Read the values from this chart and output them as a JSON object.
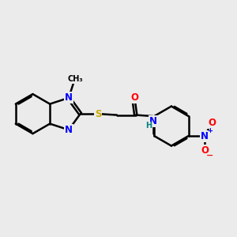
{
  "bg_color": "#ebebeb",
  "bond_color": "#000000",
  "bond_width": 1.8,
  "atom_colors": {
    "N": "#0000ff",
    "O": "#ff0000",
    "S": "#ccaa00",
    "H": "#008080",
    "C": "#000000"
  },
  "font_size_atom": 8.5,
  "font_size_small": 6.5
}
